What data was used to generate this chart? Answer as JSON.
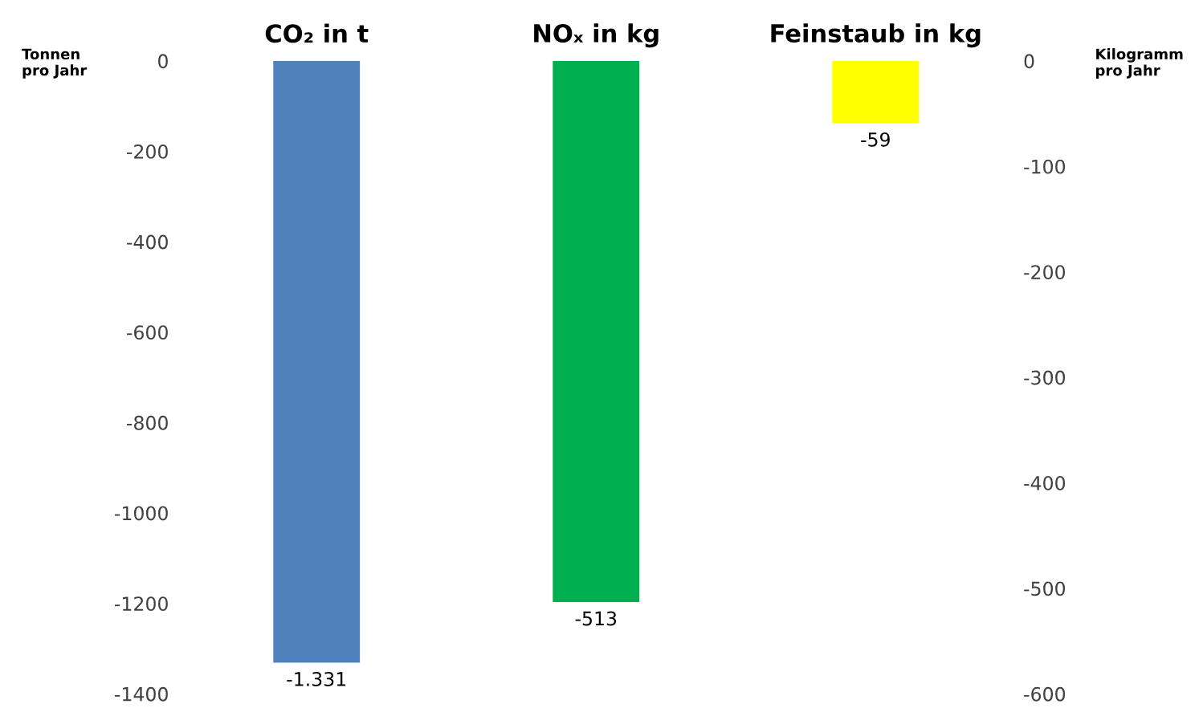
{
  "chart_data": {
    "type": "bar",
    "categories": [
      "CO₂ in t",
      "NOₓ in kg",
      "Feinstaub in kg"
    ],
    "ylabel": "Tonnen\npro Jahr",
    "y2label": "Kilogramm\npro Jahr",
    "series": [
      {
        "values": [
          -1331,
          null,
          null
        ],
        "colors": [
          "#4f81bd",
          null,
          null
        ],
        "value_labels": [
          "-1.331",
          null,
          null
        ]
      },
      {
        "values": [
          null,
          -513,
          -59
        ],
        "axis": "y2",
        "colors": [
          null,
          "#00b050",
          "#ffff00"
        ],
        "value_labels": [
          null,
          "-513",
          "-59"
        ]
      }
    ],
    "ylim": [
      -1400,
      0
    ],
    "yticks": [
      -1400,
      -1200,
      -1000,
      -800,
      -600,
      -400,
      -200,
      0
    ],
    "y2lim": [
      -600,
      0
    ],
    "y2ticks": [
      -600,
      -500,
      -400,
      -300,
      -200,
      -100,
      0
    ],
    "grid": false,
    "legend": false
  }
}
